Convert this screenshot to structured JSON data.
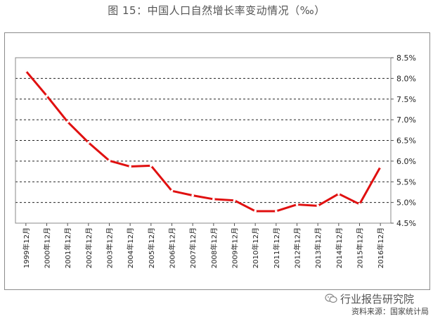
{
  "page": {
    "title": "图 15：中国人口自然增长率变动情况（‰）",
    "watermark": "行业报告研究院",
    "source": "资料来源：国家统计局"
  },
  "colors": {
    "line": "#e01010",
    "grid": "#222222",
    "plot_border": "#888888"
  },
  "chart_data": {
    "type": "line",
    "title": "图 15：中国人口自然增长率变动情况（‰）",
    "xlabel": "",
    "ylabel": "",
    "categories": [
      "1999年12月",
      "2000年12月",
      "2001年12月",
      "2002年12月",
      "2003年12月",
      "2004年12月",
      "2005年12月",
      "2006年12月",
      "2007年12月",
      "2008年12月",
      "2009年12月",
      "2010年12月",
      "2011年12月",
      "2012年12月",
      "2013年12月",
      "2014年12月",
      "2015年12月",
      "2016年12月"
    ],
    "series": [
      {
        "values": [
          8.18,
          7.58,
          6.95,
          6.45,
          6.01,
          5.87,
          5.89,
          5.28,
          5.17,
          5.08,
          5.05,
          4.79,
          4.79,
          4.95,
          4.92,
          5.21,
          4.96,
          5.86
        ]
      }
    ],
    "ylim": [
      4.5,
      8.5
    ],
    "yticks": [
      4.5,
      5.0,
      5.5,
      6.0,
      6.5,
      7.0,
      7.5,
      8.0,
      8.5
    ],
    "ytick_labels": [
      "4.5%",
      "5.0%",
      "5.5%",
      "6.0%",
      "6.5%",
      "7.0%",
      "7.5%",
      "8.0%",
      "8.5%"
    ],
    "y_axis_position": "right",
    "grid": "dashed horizontal",
    "legend": "none"
  }
}
